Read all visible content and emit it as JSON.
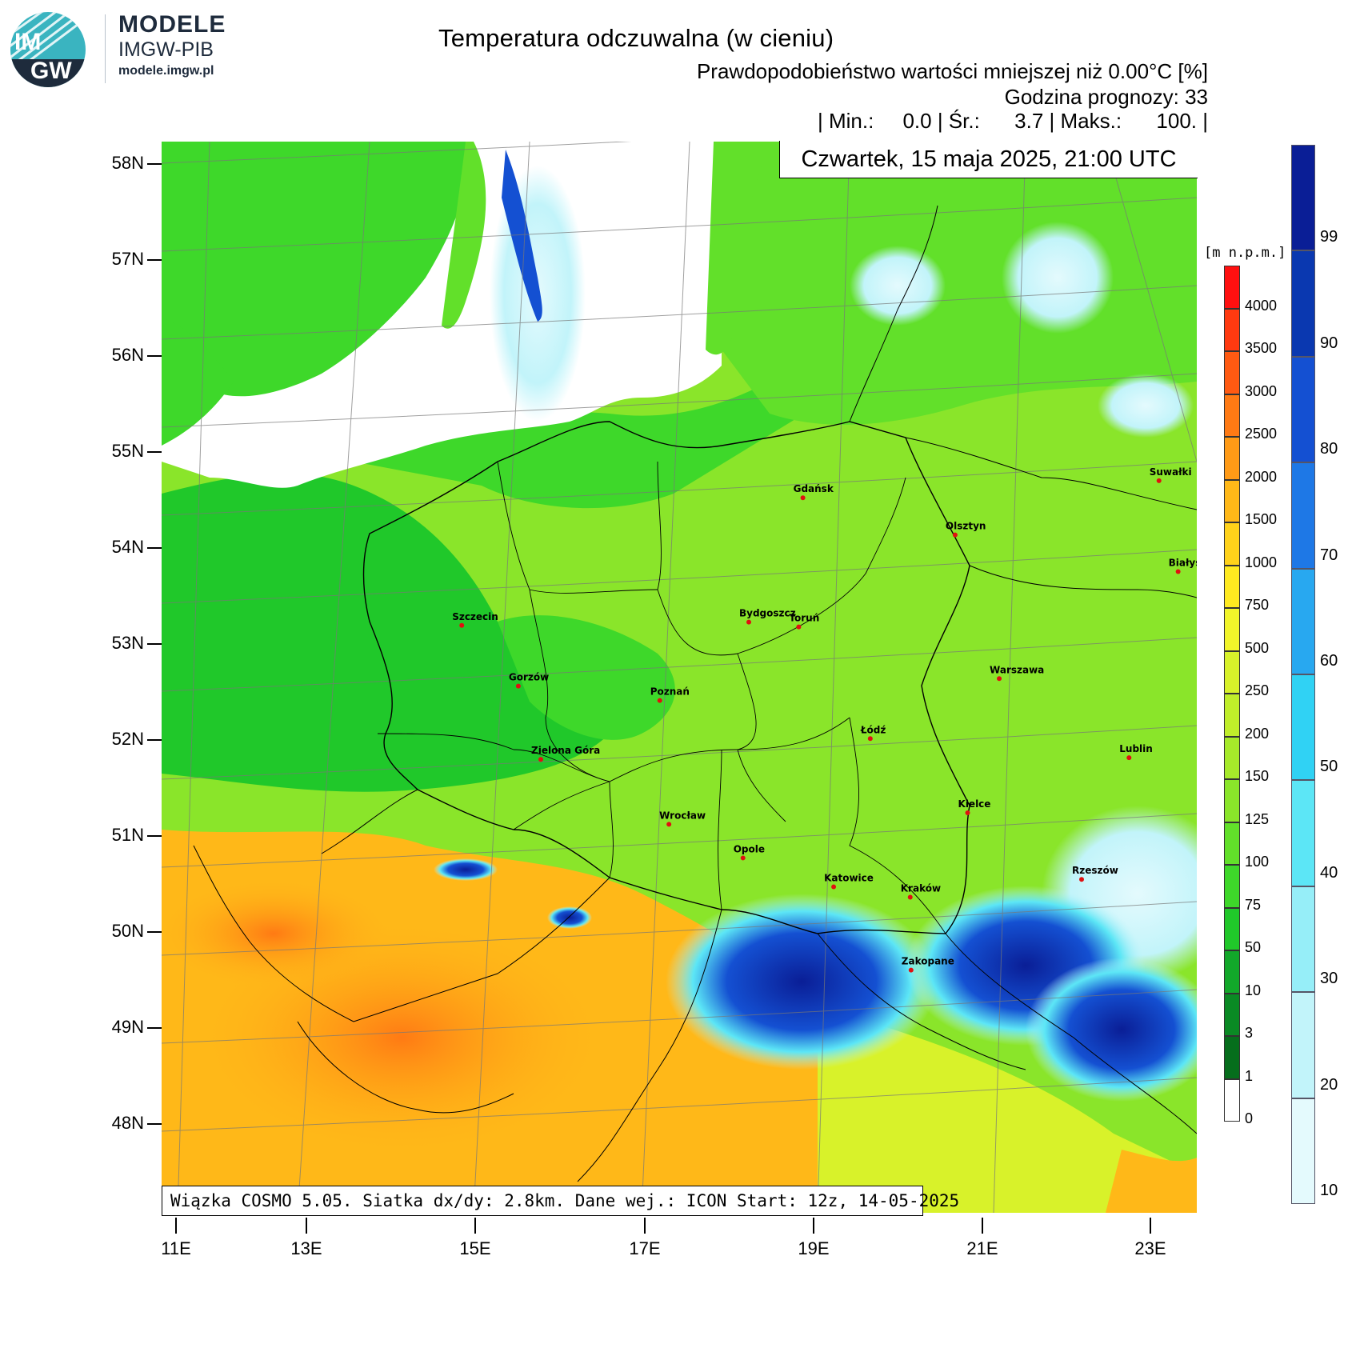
{
  "logo": {
    "badge_top": "IM",
    "badge_bottom": "GW",
    "line1": "MODELE",
    "line2": "IMGW-PIB",
    "line3": "modele.imgw.pl"
  },
  "header": {
    "title": "Temperatura odczuwalna (w cieniu)",
    "subtitle": "Prawdopodobieństwo wartości mniejszej niż 0.00°C [%]",
    "forecast_hour": "Godzina prognozy: 33",
    "stats": "| Min.:     0.0 | Śr.:      3.7 | Maks.:      100. |"
  },
  "date_label": "Czwartek, 15 maja 2025, 21:00 UTC",
  "run_info": "Wiązka COSMO 5.05. Siatka dx/dy: 2.8km. Dane wej.: ICON Start: 12z, 14-05-2025",
  "axes": {
    "lat_labels": [
      "58N",
      "57N",
      "56N",
      "55N",
      "54N",
      "53N",
      "52N",
      "51N",
      "50N",
      "49N",
      "48N"
    ],
    "lon_labels": [
      "11E",
      "13E",
      "15E",
      "17E",
      "19E",
      "21E",
      "23E"
    ]
  },
  "terrain_scale": {
    "unit": "[m n.p.m.]",
    "labels": [
      "4000",
      "3500",
      "3000",
      "2500",
      "2000",
      "1500",
      "1000",
      "750",
      "500",
      "250",
      "200",
      "150",
      "125",
      "100",
      "75",
      "50",
      "10",
      "3",
      "1",
      "0"
    ],
    "colors": [
      "#ff1010",
      "#ff3a10",
      "#ff5a12",
      "#ff7a14",
      "#ff9a16",
      "#ffb818",
      "#ffd21a",
      "#ffea20",
      "#f2f52a",
      "#d8f22a",
      "#c0ee2a",
      "#a6ea2a",
      "#8ae52a",
      "#62e02a",
      "#3ed82a",
      "#20c82a",
      "#12a82a",
      "#0a8a24",
      "#066e1c",
      "#ffffff"
    ]
  },
  "prob_scale": {
    "labels": [
      "99",
      "90",
      "80",
      "70",
      "60",
      "50",
      "40",
      "30",
      "20",
      "10"
    ],
    "colors": [
      "#0a1e96",
      "#0a38b0",
      "#1450d2",
      "#1e78e6",
      "#28a8f0",
      "#30d2f4",
      "#5ce6f6",
      "#96eef8",
      "#c2f4fa",
      "#e4fafd"
    ]
  },
  "cities": [
    {
      "name": "Gdańsk",
      "lon": 18.65,
      "lat": 54.35
    },
    {
      "name": "Suwałki",
      "lon": 22.93,
      "lat": 54.1
    },
    {
      "name": "Olsztyn",
      "lon": 20.48,
      "lat": 53.78
    },
    {
      "name": "Białystok",
      "lon": 23.16,
      "lat": 53.13
    },
    {
      "name": "Szczecin",
      "lon": 14.55,
      "lat": 53.43
    },
    {
      "name": "Bydgoszcz",
      "lon": 18.0,
      "lat": 53.12
    },
    {
      "name": "Toruń",
      "lon": 18.6,
      "lat": 53.01
    },
    {
      "name": "Gorzów",
      "lon": 15.23,
      "lat": 52.73
    },
    {
      "name": "Poznań",
      "lon": 16.93,
      "lat": 52.41
    },
    {
      "name": "Warszawa",
      "lon": 21.01,
      "lat": 52.23
    },
    {
      "name": "Zielona Góra",
      "lon": 15.5,
      "lat": 51.94
    },
    {
      "name": "Łódź",
      "lon": 19.46,
      "lat": 51.76
    },
    {
      "name": "Lublin",
      "lon": 22.57,
      "lat": 51.25
    },
    {
      "name": "Wrocław",
      "lon": 17.04,
      "lat": 51.11
    },
    {
      "name": "Kielce",
      "lon": 20.63,
      "lat": 50.87
    },
    {
      "name": "Opole",
      "lon": 17.93,
      "lat": 50.67
    },
    {
      "name": "Rzeszów",
      "lon": 22.0,
      "lat": 50.04
    },
    {
      "name": "Katowice",
      "lon": 19.02,
      "lat": 50.26
    },
    {
      "name": "Kraków",
      "lon": 19.94,
      "lat": 50.06
    },
    {
      "name": "Zakopane",
      "lon": 19.95,
      "lat": 49.3
    }
  ]
}
